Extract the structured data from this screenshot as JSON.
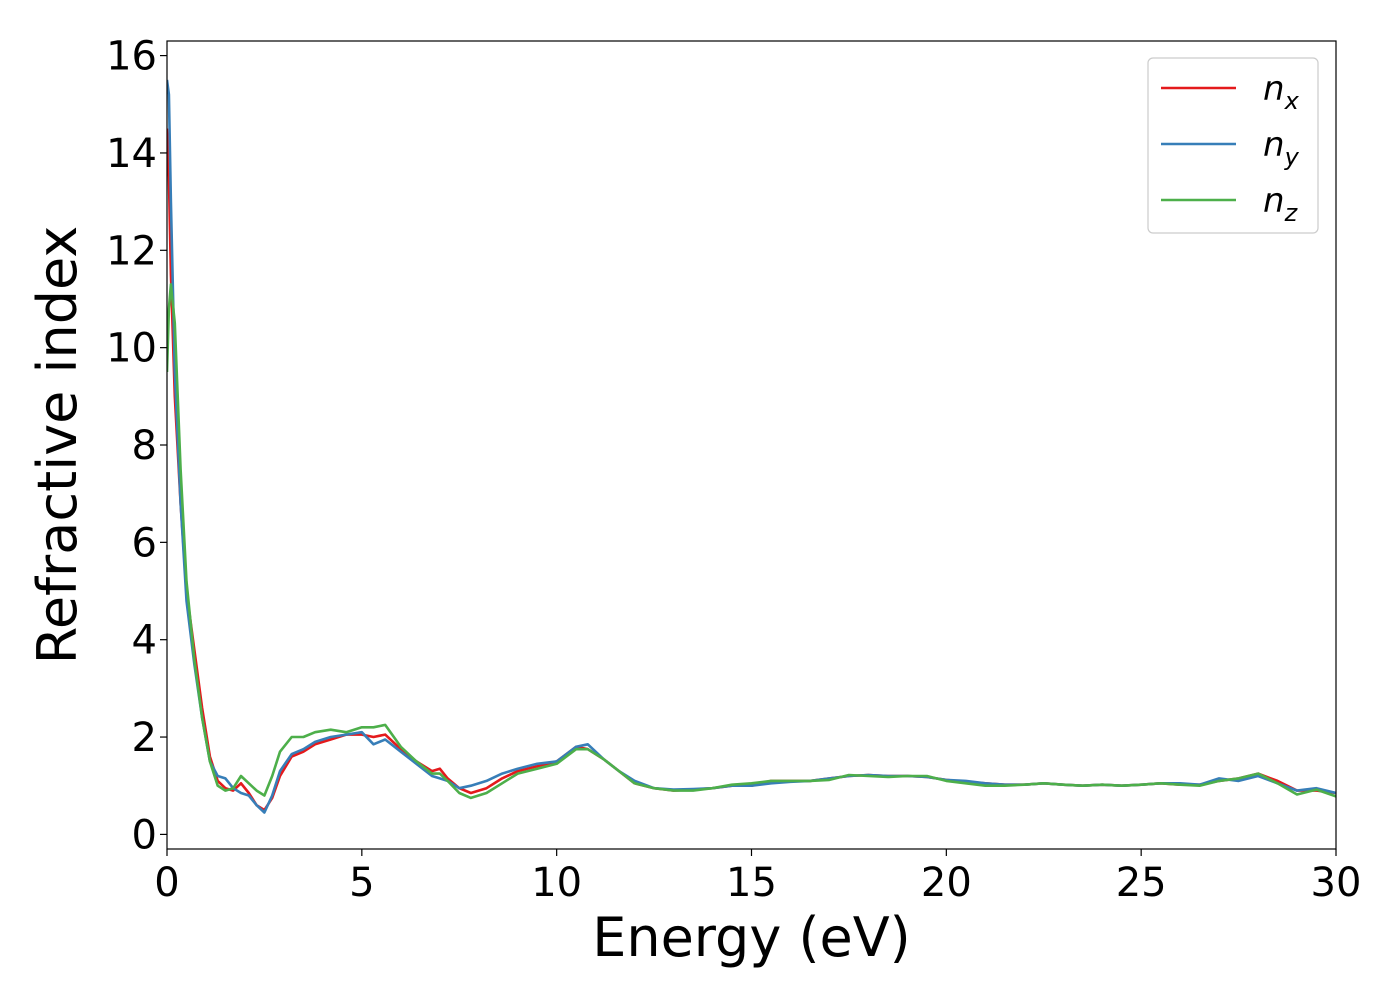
{
  "chart_data": {
    "type": "line",
    "xlabel": "Energy (eV)",
    "ylabel": "Refractive index",
    "xlim": [
      0,
      30
    ],
    "ylim": [
      -0.3,
      16.3
    ],
    "xticks": [
      0,
      5,
      10,
      15,
      20,
      25,
      30
    ],
    "yticks": [
      0,
      2,
      4,
      6,
      8,
      10,
      12,
      14,
      16
    ],
    "grid": false,
    "legend_position": "top-right",
    "series": [
      {
        "name": "n_x",
        "label_base": "n",
        "label_sub": "x",
        "color": "#e41a1c",
        "x": [
          0,
          0.05,
          0.1,
          0.2,
          0.35,
          0.5,
          0.7,
          0.9,
          1.1,
          1.3,
          1.5,
          1.7,
          1.9,
          2.1,
          2.3,
          2.5,
          2.7,
          2.9,
          3.2,
          3.5,
          3.8,
          4.2,
          4.6,
          5.0,
          5.3,
          5.6,
          6.0,
          6.4,
          6.8,
          7.0,
          7.2,
          7.5,
          7.8,
          8.2,
          8.6,
          9.0,
          9.5,
          10.0,
          10.5,
          10.8,
          11.2,
          11.6,
          12.0,
          12.5,
          13.0,
          13.5,
          14.0,
          14.5,
          15.0,
          15.5,
          16.0,
          16.5,
          17.0,
          17.5,
          18.0,
          18.5,
          19.0,
          19.5,
          20.0,
          20.5,
          21.0,
          21.5,
          22.0,
          22.5,
          23.0,
          23.5,
          24.0,
          24.5,
          25.0,
          25.5,
          26.0,
          26.5,
          27.0,
          27.5,
          28.0,
          28.5,
          29.0,
          29.5,
          30.0
        ],
        "values": [
          14.5,
          13.5,
          11.5,
          9.0,
          6.8,
          5.0,
          3.8,
          2.6,
          1.6,
          1.1,
          0.95,
          0.9,
          1.05,
          0.85,
          0.6,
          0.5,
          0.75,
          1.2,
          1.6,
          1.7,
          1.85,
          1.95,
          2.05,
          2.05,
          2.0,
          2.05,
          1.75,
          1.5,
          1.3,
          1.35,
          1.15,
          0.95,
          0.85,
          0.95,
          1.15,
          1.3,
          1.4,
          1.5,
          1.8,
          1.75,
          1.55,
          1.3,
          1.05,
          0.95,
          0.9,
          0.92,
          0.95,
          1.0,
          1.0,
          1.1,
          1.1,
          1.1,
          1.15,
          1.2,
          1.22,
          1.2,
          1.2,
          1.18,
          1.12,
          1.08,
          1.05,
          1.02,
          1.02,
          1.05,
          1.02,
          1.0,
          1.02,
          1.0,
          1.02,
          1.05,
          1.02,
          1.02,
          1.1,
          1.15,
          1.25,
          1.1,
          0.9,
          0.9,
          0.85
        ]
      },
      {
        "name": "n_y",
        "label_base": "n",
        "label_sub": "y",
        "color": "#377eb8",
        "x": [
          0,
          0.05,
          0.1,
          0.2,
          0.35,
          0.5,
          0.7,
          0.9,
          1.1,
          1.3,
          1.5,
          1.7,
          1.9,
          2.1,
          2.3,
          2.5,
          2.7,
          2.9,
          3.2,
          3.5,
          3.8,
          4.2,
          4.6,
          5.0,
          5.3,
          5.6,
          6.0,
          6.4,
          6.8,
          7.0,
          7.2,
          7.5,
          7.8,
          8.2,
          8.6,
          9.0,
          9.5,
          10.0,
          10.5,
          10.8,
          11.2,
          11.6,
          12.0,
          12.5,
          13.0,
          13.5,
          14.0,
          14.5,
          15.0,
          15.5,
          16.0,
          16.5,
          17.0,
          17.5,
          18.0,
          18.5,
          19.0,
          19.5,
          20.0,
          20.5,
          21.0,
          21.5,
          22.0,
          22.5,
          23.0,
          23.5,
          24.0,
          24.5,
          25.0,
          25.5,
          26.0,
          26.5,
          27.0,
          27.5,
          28.0,
          28.5,
          29.0,
          29.5,
          30.0
        ],
        "values": [
          15.5,
          15.2,
          13.0,
          9.5,
          6.8,
          4.8,
          3.5,
          2.4,
          1.5,
          1.2,
          1.15,
          0.95,
          0.85,
          0.8,
          0.6,
          0.45,
          0.8,
          1.3,
          1.65,
          1.75,
          1.9,
          2.0,
          2.05,
          2.1,
          1.85,
          1.95,
          1.7,
          1.45,
          1.2,
          1.15,
          1.1,
          0.95,
          1.0,
          1.1,
          1.25,
          1.35,
          1.45,
          1.5,
          1.8,
          1.85,
          1.55,
          1.3,
          1.1,
          0.95,
          0.92,
          0.93,
          0.95,
          1.0,
          1.0,
          1.05,
          1.08,
          1.1,
          1.15,
          1.2,
          1.22,
          1.2,
          1.2,
          1.18,
          1.12,
          1.1,
          1.05,
          1.02,
          1.02,
          1.05,
          1.02,
          1.0,
          1.02,
          1.0,
          1.02,
          1.05,
          1.05,
          1.02,
          1.15,
          1.1,
          1.2,
          1.05,
          0.9,
          0.95,
          0.85
        ]
      },
      {
        "name": "n_z",
        "label_base": "n",
        "label_sub": "z",
        "color": "#4daf4a",
        "x": [
          0,
          0.05,
          0.1,
          0.2,
          0.35,
          0.5,
          0.7,
          0.9,
          1.1,
          1.3,
          1.5,
          1.7,
          1.9,
          2.1,
          2.3,
          2.5,
          2.7,
          2.9,
          3.2,
          3.5,
          3.8,
          4.2,
          4.6,
          5.0,
          5.3,
          5.6,
          6.0,
          6.4,
          6.8,
          7.0,
          7.2,
          7.5,
          7.8,
          8.2,
          8.6,
          9.0,
          9.5,
          10.0,
          10.5,
          10.8,
          11.2,
          11.6,
          12.0,
          12.5,
          13.0,
          13.5,
          14.0,
          14.5,
          15.0,
          15.5,
          16.0,
          16.5,
          17.0,
          17.5,
          18.0,
          18.5,
          19.0,
          19.5,
          20.0,
          20.5,
          21.0,
          21.5,
          22.0,
          22.5,
          23.0,
          23.5,
          24.0,
          24.5,
          25.0,
          25.5,
          26.0,
          26.5,
          27.0,
          27.5,
          28.0,
          28.5,
          29.0,
          29.5,
          30.0
        ],
        "values": [
          9.5,
          10.8,
          11.3,
          10.5,
          7.5,
          5.2,
          3.6,
          2.4,
          1.5,
          1.0,
          0.9,
          0.95,
          1.2,
          1.05,
          0.9,
          0.8,
          1.2,
          1.7,
          2.0,
          2.0,
          2.1,
          2.15,
          2.1,
          2.2,
          2.2,
          2.25,
          1.8,
          1.5,
          1.25,
          1.25,
          1.1,
          0.85,
          0.75,
          0.85,
          1.05,
          1.25,
          1.35,
          1.45,
          1.75,
          1.75,
          1.55,
          1.3,
          1.05,
          0.95,
          0.9,
          0.9,
          0.95,
          1.02,
          1.05,
          1.1,
          1.1,
          1.1,
          1.12,
          1.22,
          1.2,
          1.18,
          1.2,
          1.2,
          1.1,
          1.05,
          1.0,
          1.0,
          1.02,
          1.05,
          1.02,
          1.0,
          1.02,
          1.0,
          1.02,
          1.05,
          1.02,
          1.0,
          1.1,
          1.15,
          1.25,
          1.05,
          0.82,
          0.92,
          0.78
        ]
      }
    ]
  }
}
